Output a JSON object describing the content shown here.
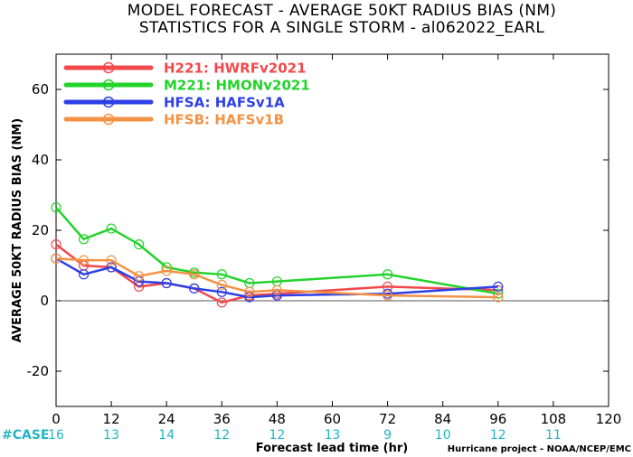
{
  "chart_data": {
    "type": "line",
    "title": "MODEL FORECAST - AVERAGE 50KT RADIUS BIAS (NM)",
    "subtitle": "STATISTICS FOR A SINGLE STORM - al062022_EARL",
    "xlabel": "Forecast lead time (hr)",
    "ylabel": "AVERAGE 50KT RADIUS BIAS (NM)",
    "xlim": [
      0,
      120
    ],
    "ylim": [
      -30,
      70
    ],
    "x_ticks": [
      0,
      12,
      24,
      36,
      48,
      60,
      72,
      84,
      96,
      108,
      120
    ],
    "y_ticks": [
      -20,
      0,
      20,
      40,
      60
    ],
    "x_tick_labels": [
      "0",
      "12",
      "24",
      "36",
      "48",
      "60",
      "72",
      "84",
      "96",
      "108",
      "120"
    ],
    "y_tick_labels": [
      "-20",
      "0",
      "20",
      "40",
      "60"
    ],
    "zero_line": true,
    "legend_position": "top-left",
    "series": [
      {
        "name": "H221: HWRFv2021",
        "color": "#f2484b",
        "x": [
          0,
          6,
          12,
          18,
          24,
          30,
          36,
          42,
          48,
          72,
          96
        ],
        "y": [
          16,
          10,
          9.5,
          4,
          5,
          3.5,
          -0.5,
          1.5,
          2,
          4,
          3
        ]
      },
      {
        "name": "M221: HMONv2021",
        "color": "#22d32a",
        "x": [
          0,
          6,
          12,
          18,
          24,
          30,
          36,
          42,
          48,
          72,
          96
        ],
        "y": [
          26.5,
          17.5,
          20.5,
          16,
          9.5,
          8,
          7.5,
          5,
          5.5,
          7.5,
          2
        ]
      },
      {
        "name": "HFSA: HAFSv1A",
        "color": "#2d3fe6",
        "x": [
          0,
          6,
          12,
          18,
          24,
          30,
          36,
          42,
          48,
          72,
          96
        ],
        "y": [
          12,
          7.5,
          9.5,
          5.5,
          5,
          3.5,
          2.5,
          1,
          1.5,
          2,
          4
        ]
      },
      {
        "name": "HFSB: HAFSv1B",
        "color": "#f39243",
        "x": [
          0,
          6,
          12,
          18,
          24,
          30,
          36,
          42,
          48,
          72,
          96
        ],
        "y": [
          12,
          11.5,
          11.5,
          7,
          8.5,
          7.5,
          4.5,
          2.5,
          3,
          1.5,
          1
        ]
      }
    ],
    "case_label": "#CASE",
    "cases": [
      {
        "x": 0,
        "n": "16"
      },
      {
        "x": 12,
        "n": "13"
      },
      {
        "x": 24,
        "n": "14"
      },
      {
        "x": 36,
        "n": "12"
      },
      {
        "x": 48,
        "n": "12"
      },
      {
        "x": 60,
        "n": "13"
      },
      {
        "x": 72,
        "n": "9"
      },
      {
        "x": 84,
        "n": "10"
      },
      {
        "x": 96,
        "n": "12"
      },
      {
        "x": 108,
        "n": "11"
      }
    ],
    "credit": "Hurricane project - NOAA/NCEP/EMC"
  }
}
